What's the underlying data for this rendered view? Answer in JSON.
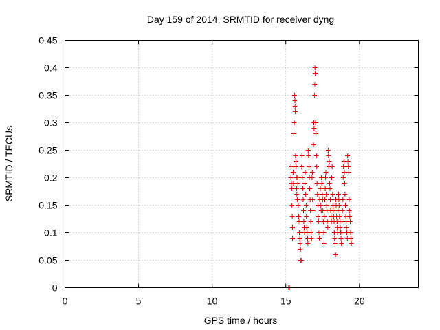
{
  "chart_data": {
    "type": "scatter",
    "title": "Day 159 of 2014, SRMTID for receiver dyng",
    "xlabel": "GPS time / hours",
    "ylabel": "SRMTID / TECUs",
    "xlim": [
      0,
      24
    ],
    "ylim": [
      0,
      0.45
    ],
    "xticks": [
      0,
      5,
      10,
      15,
      20
    ],
    "yticks": [
      0,
      0.05,
      0.1,
      0.15,
      0.2,
      0.25,
      0.3,
      0.35,
      0.4,
      0.45
    ],
    "xtick_labels": [
      "0",
      "5",
      "10",
      "15",
      "20"
    ],
    "ytick_labels": [
      "0",
      "0.05",
      "0.1",
      "0.15",
      "0.2",
      "0.25",
      "0.3",
      "0.35",
      "0.4",
      "0.45"
    ],
    "grid": true,
    "marker": "+",
    "color": "#e00000",
    "series": [
      {
        "name": "SRMTID",
        "points": [
          [
            15.2,
            0.0
          ],
          [
            15.22,
            0.0
          ],
          [
            15.25,
            0.0
          ],
          [
            15.35,
            0.2
          ],
          [
            15.36,
            0.22
          ],
          [
            15.38,
            0.19
          ],
          [
            15.4,
            0.18
          ],
          [
            15.42,
            0.15
          ],
          [
            15.44,
            0.13
          ],
          [
            15.45,
            0.11
          ],
          [
            15.46,
            0.09
          ],
          [
            15.5,
            0.21
          ],
          [
            15.52,
            0.19
          ],
          [
            15.55,
            0.28
          ],
          [
            15.58,
            0.3
          ],
          [
            15.6,
            0.35
          ],
          [
            15.62,
            0.34
          ],
          [
            15.63,
            0.33
          ],
          [
            15.65,
            0.32
          ],
          [
            15.66,
            0.24
          ],
          [
            15.68,
            0.23
          ],
          [
            15.7,
            0.22
          ],
          [
            15.72,
            0.2
          ],
          [
            15.74,
            0.18
          ],
          [
            15.75,
            0.17
          ],
          [
            15.78,
            0.16
          ],
          [
            15.8,
            0.2
          ],
          [
            15.82,
            0.19
          ],
          [
            15.85,
            0.15
          ],
          [
            15.88,
            0.13
          ],
          [
            15.9,
            0.12
          ],
          [
            15.92,
            0.1
          ],
          [
            15.95,
            0.09
          ],
          [
            15.98,
            0.08
          ],
          [
            16.0,
            0.07
          ],
          [
            16.02,
            0.05
          ],
          [
            16.05,
            0.05
          ],
          [
            16.08,
            0.22
          ],
          [
            16.1,
            0.24
          ],
          [
            16.12,
            0.2
          ],
          [
            16.15,
            0.18
          ],
          [
            16.18,
            0.16
          ],
          [
            16.2,
            0.14
          ],
          [
            16.22,
            0.12
          ],
          [
            16.25,
            0.11
          ],
          [
            16.28,
            0.1
          ],
          [
            16.3,
            0.19
          ],
          [
            16.32,
            0.21
          ],
          [
            16.35,
            0.17
          ],
          [
            16.38,
            0.15
          ],
          [
            16.4,
            0.13
          ],
          [
            16.42,
            0.11
          ],
          [
            16.45,
            0.1
          ],
          [
            16.48,
            0.09
          ],
          [
            16.5,
            0.08
          ],
          [
            16.52,
            0.25
          ],
          [
            16.55,
            0.24
          ],
          [
            16.58,
            0.22
          ],
          [
            16.6,
            0.2
          ],
          [
            16.62,
            0.18
          ],
          [
            16.65,
            0.16
          ],
          [
            16.68,
            0.14
          ],
          [
            16.7,
            0.12
          ],
          [
            16.72,
            0.1
          ],
          [
            16.75,
            0.09
          ],
          [
            16.78,
            0.2
          ],
          [
            16.8,
            0.21
          ],
          [
            16.82,
            0.16
          ],
          [
            16.85,
            0.14
          ],
          [
            16.88,
            0.26
          ],
          [
            16.9,
            0.3
          ],
          [
            16.92,
            0.29
          ],
          [
            16.95,
            0.35
          ],
          [
            16.97,
            0.37
          ],
          [
            16.98,
            0.4
          ],
          [
            17.0,
            0.39
          ],
          [
            17.02,
            0.3
          ],
          [
            17.05,
            0.28
          ],
          [
            17.08,
            0.24
          ],
          [
            17.1,
            0.22
          ],
          [
            17.12,
            0.19
          ],
          [
            17.15,
            0.17
          ],
          [
            17.18,
            0.15
          ],
          [
            17.2,
            0.13
          ],
          [
            17.22,
            0.12
          ],
          [
            17.25,
            0.1
          ],
          [
            17.28,
            0.09
          ],
          [
            17.3,
            0.16
          ],
          [
            17.35,
            0.18
          ],
          [
            17.38,
            0.15
          ],
          [
            17.4,
            0.14
          ],
          [
            17.42,
            0.2
          ],
          [
            17.45,
            0.19
          ],
          [
            17.48,
            0.17
          ],
          [
            17.5,
            0.16
          ],
          [
            17.52,
            0.14
          ],
          [
            17.55,
            0.12
          ],
          [
            17.58,
            0.1
          ],
          [
            17.6,
            0.08
          ],
          [
            17.62,
            0.13
          ],
          [
            17.65,
            0.16
          ],
          [
            17.68,
            0.18
          ],
          [
            17.7,
            0.2
          ],
          [
            17.72,
            0.21
          ],
          [
            17.75,
            0.17
          ],
          [
            17.78,
            0.15
          ],
          [
            17.8,
            0.14
          ],
          [
            17.82,
            0.12
          ],
          [
            17.85,
            0.11
          ],
          [
            17.88,
            0.25
          ],
          [
            17.9,
            0.24
          ],
          [
            17.92,
            0.22
          ],
          [
            17.95,
            0.23
          ],
          [
            17.98,
            0.19
          ],
          [
            18.0,
            0.18
          ],
          [
            18.02,
            0.16
          ],
          [
            18.05,
            0.14
          ],
          [
            18.08,
            0.13
          ],
          [
            18.1,
            0.12
          ],
          [
            18.12,
            0.2
          ],
          [
            18.15,
            0.22
          ],
          [
            18.18,
            0.17
          ],
          [
            18.2,
            0.15
          ],
          [
            18.22,
            0.14
          ],
          [
            18.25,
            0.13
          ],
          [
            18.28,
            0.12
          ],
          [
            18.3,
            0.1
          ],
          [
            18.32,
            0.09
          ],
          [
            18.35,
            0.08
          ],
          [
            18.38,
            0.06
          ],
          [
            18.4,
            0.16
          ],
          [
            18.42,
            0.15
          ],
          [
            18.45,
            0.13
          ],
          [
            18.48,
            0.12
          ],
          [
            18.5,
            0.11
          ],
          [
            18.52,
            0.1
          ],
          [
            18.55,
            0.14
          ],
          [
            18.58,
            0.17
          ],
          [
            18.6,
            0.16
          ],
          [
            18.62,
            0.15
          ],
          [
            18.65,
            0.13
          ],
          [
            18.68,
            0.12
          ],
          [
            18.7,
            0.11
          ],
          [
            18.72,
            0.1
          ],
          [
            18.75,
            0.09
          ],
          [
            18.78,
            0.08
          ],
          [
            18.8,
            0.1
          ],
          [
            18.82,
            0.12
          ],
          [
            18.85,
            0.14
          ],
          [
            18.88,
            0.16
          ],
          [
            18.9,
            0.2
          ],
          [
            18.92,
            0.22
          ],
          [
            18.95,
            0.23
          ],
          [
            18.98,
            0.21
          ],
          [
            19.0,
            0.19
          ],
          [
            19.02,
            0.17
          ],
          [
            19.05,
            0.15
          ],
          [
            19.08,
            0.13
          ],
          [
            19.1,
            0.12
          ],
          [
            19.12,
            0.11
          ],
          [
            19.15,
            0.1
          ],
          [
            19.18,
            0.09
          ],
          [
            19.2,
            0.24
          ],
          [
            19.22,
            0.23
          ],
          [
            19.25,
            0.22
          ],
          [
            19.28,
            0.21
          ],
          [
            19.3,
            0.16
          ],
          [
            19.32,
            0.14
          ],
          [
            19.35,
            0.13
          ],
          [
            19.38,
            0.12
          ],
          [
            19.4,
            0.1
          ],
          [
            19.42,
            0.09
          ],
          [
            19.45,
            0.08
          ]
        ]
      }
    ]
  }
}
